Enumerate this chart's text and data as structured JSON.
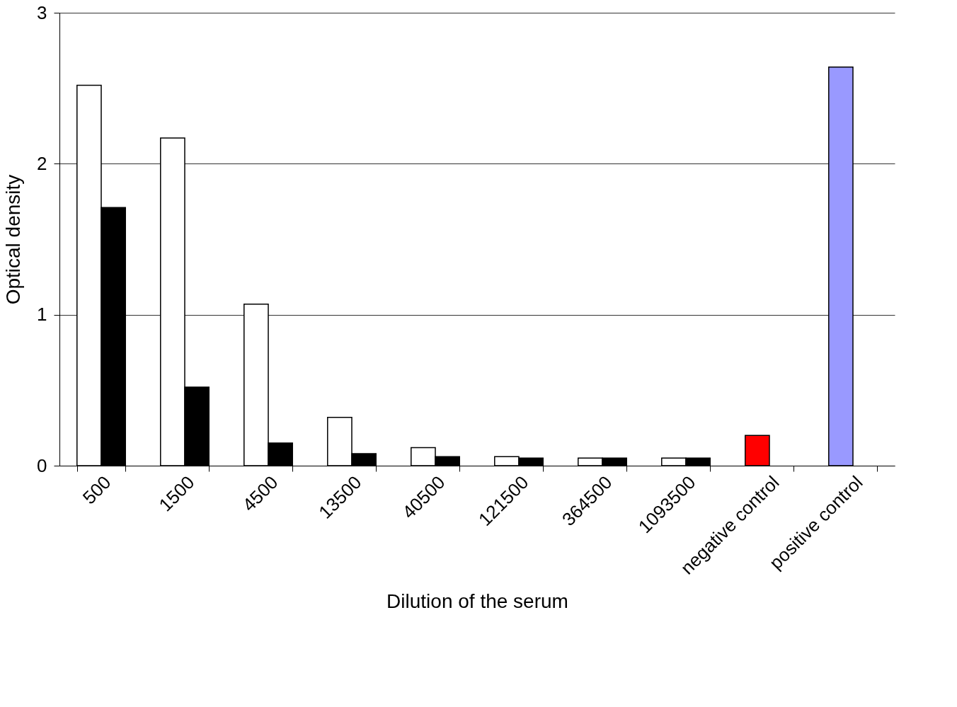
{
  "chart_data": {
    "type": "bar",
    "xlabel": "Dilution of the serum",
    "ylabel": "Optical density",
    "categories": [
      "500",
      "1500",
      "4500",
      "13500",
      "40500",
      "121500",
      "364500",
      "1093500",
      "negative control",
      "positive control"
    ],
    "series": [
      {
        "colors": [
          "#ffffff",
          "#ffffff",
          "#ffffff",
          "#ffffff",
          "#ffffff",
          "#ffffff",
          "#ffffff",
          "#ffffff",
          "#ff0000",
          "#9999ff"
        ],
        "values": [
          2.52,
          2.17,
          1.07,
          0.32,
          0.12,
          0.06,
          0.05,
          0.05,
          0.2,
          2.64
        ]
      },
      {
        "color": "#000000",
        "values": [
          1.71,
          0.52,
          0.15,
          0.08,
          0.06,
          0.05,
          0.05,
          0.05,
          null,
          null
        ]
      }
    ],
    "ylim": [
      0,
      3
    ],
    "yticks": [
      0,
      1,
      2,
      3
    ],
    "grid": "y"
  }
}
